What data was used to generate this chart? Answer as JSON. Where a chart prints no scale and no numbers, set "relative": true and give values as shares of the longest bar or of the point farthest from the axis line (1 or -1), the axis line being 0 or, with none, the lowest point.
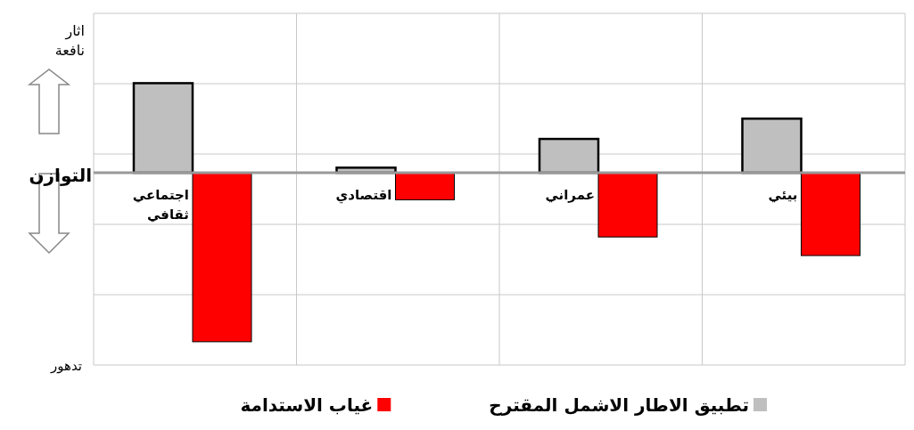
{
  "chart_data": {
    "type": "bar",
    "relative": true,
    "grid": true,
    "legend": "bottom",
    "categories": [
      "اجتماعي ثقافي",
      "اقتصادي",
      "عمراني",
      "بيئي"
    ],
    "series": [
      {
        "name": "تطبيق الاطار الاشمل المقترح",
        "color": "#bfbfbf",
        "values": [
          0.53,
          0.03,
          0.2,
          0.32
        ]
      },
      {
        "name": "غياب الاستدامة",
        "color": "#ff0000",
        "values": [
          -1,
          -0.16,
          -0.38,
          -0.49
        ]
      }
    ],
    "annotations": [
      "اثار نافعة",
      "التوازن",
      "تدهور"
    ]
  }
}
